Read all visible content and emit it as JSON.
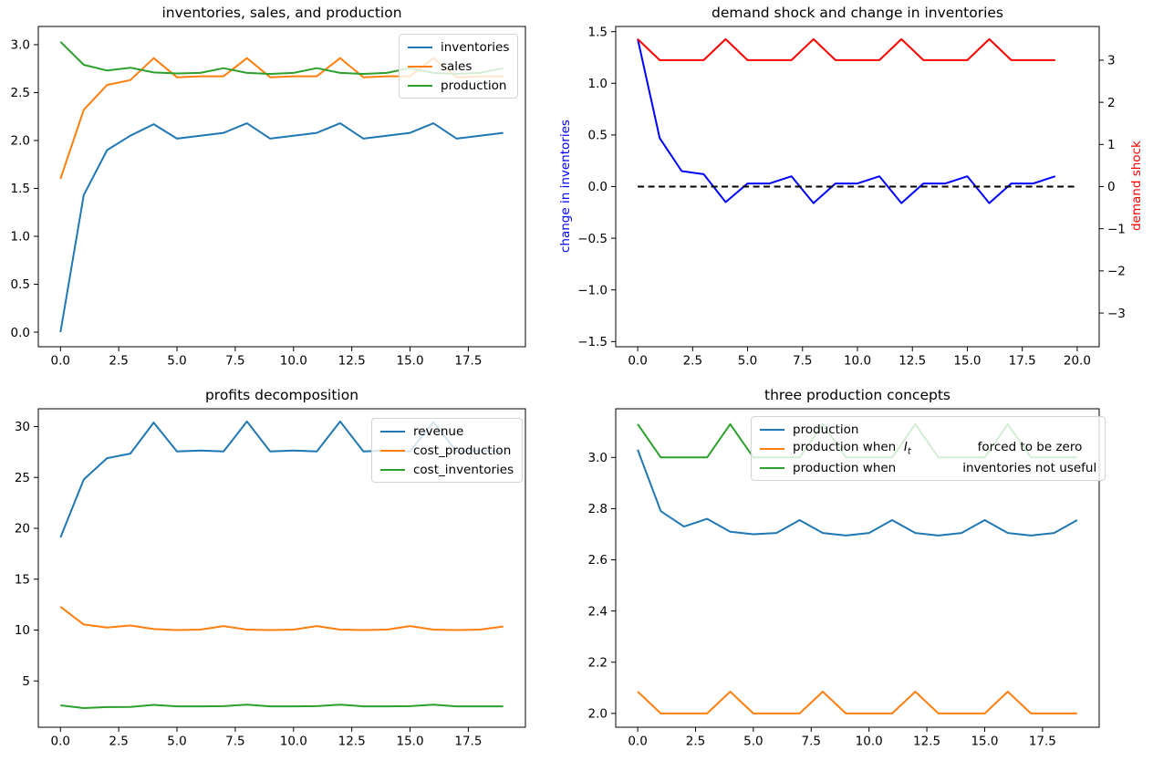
{
  "figure": {
    "background": "#ffffff"
  },
  "chart_data": [
    {
      "type": "line",
      "title": "inventories, sales, and production",
      "x": [
        0,
        1,
        2,
        3,
        4,
        5,
        6,
        7,
        8,
        9,
        10,
        11,
        12,
        13,
        14,
        15,
        16,
        17,
        18,
        19
      ],
      "xlim": [
        -0.95,
        19.95
      ],
      "ylim": [
        -0.152,
        3.19
      ],
      "grid": false,
      "legend_position": "upper right",
      "xticks": {
        "values": [
          0,
          2.5,
          5,
          7.5,
          10,
          12.5,
          15,
          17.5
        ],
        "labels": [
          "0.0",
          "2.5",
          "5.0",
          "7.5",
          "10.0",
          "12.5",
          "15.0",
          "17.5"
        ]
      },
      "yticks": {
        "values": [
          0,
          0.5,
          1,
          1.5,
          2,
          2.5,
          3
        ],
        "labels": [
          "0.0",
          "0.5",
          "1.0",
          "1.5",
          "2.0",
          "2.5",
          "3.0"
        ]
      },
      "series": [
        {
          "name": "inventories",
          "legend_label": "inventories",
          "color": "#1f77b4",
          "values": [
            0.0,
            1.43,
            1.9,
            2.05,
            2.17,
            2.02,
            2.05,
            2.08,
            2.18,
            2.02,
            2.05,
            2.08,
            2.18,
            2.02,
            2.05,
            2.08,
            2.18,
            2.02,
            2.05,
            2.08
          ]
        },
        {
          "name": "sales",
          "legend_label": "sales",
          "color": "#ff7f0e",
          "values": [
            1.6,
            2.32,
            2.58,
            2.63,
            2.86,
            2.66,
            2.67,
            2.67,
            2.86,
            2.66,
            2.67,
            2.67,
            2.86,
            2.66,
            2.67,
            2.67,
            2.86,
            2.66,
            2.67,
            2.67
          ]
        },
        {
          "name": "production",
          "legend_label": "production",
          "color": "#2ca02c",
          "values": [
            3.03,
            2.79,
            2.73,
            2.76,
            2.71,
            2.7,
            2.705,
            2.755,
            2.705,
            2.695,
            2.705,
            2.755,
            2.705,
            2.695,
            2.705,
            2.755,
            2.705,
            2.695,
            2.705,
            2.755
          ]
        }
      ]
    },
    {
      "type": "line",
      "title": "demand shock and change in inventories",
      "x": [
        0,
        1,
        2,
        3,
        4,
        5,
        6,
        7,
        8,
        9,
        10,
        11,
        12,
        13,
        14,
        15,
        16,
        17,
        18,
        19
      ],
      "xlim": [
        -1.0,
        21.0
      ],
      "ylim": [
        -1.55,
        1.55
      ],
      "ylim_right": [
        -3.8,
        3.8
      ],
      "grid": false,
      "legend_position": null,
      "ylabel_left": {
        "text": "change in inventories",
        "color": "#0000ff"
      },
      "ylabel_right": {
        "text": "demand shock",
        "color": "#ff0000"
      },
      "xticks": {
        "values": [
          0,
          2.5,
          5,
          7.5,
          10,
          12.5,
          15,
          17.5,
          20
        ],
        "labels": [
          "0.0",
          "2.5",
          "5.0",
          "7.5",
          "10.0",
          "12.5",
          "15.0",
          "17.5",
          "20.0"
        ]
      },
      "yticks": {
        "values": [
          -1.5,
          -1,
          -0.5,
          0,
          0.5,
          1,
          1.5
        ],
        "labels": [
          "−1.5",
          "−1.0",
          "−0.5",
          "0.0",
          "0.5",
          "1.0",
          "1.5"
        ]
      },
      "yticks_right": {
        "values": [
          -3,
          -2,
          -1,
          0,
          1,
          2,
          3
        ],
        "labels": [
          "−3",
          "−2",
          "−1",
          "0",
          "1",
          "2",
          "3"
        ]
      },
      "series": [
        {
          "name": "change in inventories",
          "legend_label": null,
          "color": "#0000ff",
          "axis": "left",
          "values": [
            1.43,
            0.47,
            0.15,
            0.12,
            -0.15,
            0.03,
            0.03,
            0.1,
            -0.16,
            0.03,
            0.03,
            0.1,
            -0.16,
            0.03,
            0.03,
            0.1,
            -0.16,
            0.03,
            0.03,
            0.1
          ]
        },
        {
          "name": "demand shock",
          "legend_label": null,
          "color": "#ff0000",
          "axis": "right",
          "values": [
            3.5,
            3,
            3,
            3,
            3.5,
            3,
            3,
            3,
            3.5,
            3,
            3,
            3,
            3.5,
            3,
            3,
            3,
            3.5,
            3,
            3,
            3
          ]
        },
        {
          "name": "zero line",
          "legend_label": null,
          "color": "#000000",
          "axis": "left",
          "dash": true,
          "x": [
            0,
            20
          ],
          "values": [
            0,
            0
          ]
        }
      ]
    },
    {
      "type": "line",
      "title": "profits decomposition",
      "x": [
        0,
        1,
        2,
        3,
        4,
        5,
        6,
        7,
        8,
        9,
        10,
        11,
        12,
        13,
        14,
        15,
        16,
        17,
        18,
        19
      ],
      "xlim": [
        -0.95,
        19.95
      ],
      "ylim": [
        0.45,
        31.75
      ],
      "grid": false,
      "legend_position": "upper right",
      "xticks": {
        "values": [
          0,
          2.5,
          5,
          7.5,
          10,
          12.5,
          15,
          17.5
        ],
        "labels": [
          "0.0",
          "2.5",
          "5.0",
          "7.5",
          "10.0",
          "12.5",
          "15.0",
          "17.5"
        ]
      },
      "yticks": {
        "values": [
          5,
          10,
          15,
          20,
          25,
          30
        ],
        "labels": [
          "5",
          "10",
          "15",
          "20",
          "25",
          "30"
        ]
      },
      "series": [
        {
          "name": "revenue",
          "legend_label": "revenue",
          "color": "#1f77b4",
          "values": [
            19.1,
            24.8,
            26.9,
            27.35,
            30.4,
            27.55,
            27.65,
            27.55,
            30.5,
            27.55,
            27.65,
            27.55,
            30.5,
            27.55,
            27.65,
            27.55,
            30.45,
            27.55,
            27.65,
            27.55
          ]
        },
        {
          "name": "cost_production",
          "legend_label": "cost_production",
          "color": "#ff7f0e",
          "values": [
            12.3,
            10.55,
            10.25,
            10.45,
            10.1,
            10.0,
            10.05,
            10.4,
            10.05,
            10.0,
            10.05,
            10.4,
            10.05,
            10.0,
            10.05,
            10.4,
            10.05,
            10.0,
            10.05,
            10.35
          ]
        },
        {
          "name": "cost_inventories",
          "legend_label": "cost_inventories",
          "color": "#2ca02c",
          "values": [
            2.6,
            2.33,
            2.43,
            2.45,
            2.65,
            2.5,
            2.5,
            2.52,
            2.67,
            2.5,
            2.5,
            2.52,
            2.67,
            2.5,
            2.5,
            2.52,
            2.67,
            2.5,
            2.5,
            2.5
          ]
        }
      ]
    },
    {
      "type": "line",
      "title": "three production concepts",
      "x": [
        0,
        1,
        2,
        3,
        4,
        5,
        6,
        7,
        8,
        9,
        10,
        11,
        12,
        13,
        14,
        15,
        16,
        17,
        18,
        19
      ],
      "xlim": [
        -0.95,
        19.95
      ],
      "ylim": [
        1.946,
        3.19
      ],
      "grid": false,
      "legend_position": "upper center",
      "xticks": {
        "values": [
          0,
          2.5,
          5,
          7.5,
          10,
          12.5,
          15,
          17.5
        ],
        "labels": [
          "0.0",
          "2.5",
          "5.0",
          "7.5",
          "10.0",
          "12.5",
          "15.0",
          "17.5"
        ]
      },
      "yticks": {
        "values": [
          2.0,
          2.2,
          2.4,
          2.6,
          2.8,
          3.0
        ],
        "labels": [
          "2.0",
          "2.2",
          "2.4",
          "2.6",
          "2.8",
          "3.0"
        ]
      },
      "series": [
        {
          "name": "production",
          "legend_label": "production",
          "color": "#1f77b4",
          "values": [
            3.03,
            2.79,
            2.73,
            2.76,
            2.71,
            2.7,
            2.705,
            2.755,
            2.705,
            2.695,
            2.705,
            2.755,
            2.705,
            2.695,
            2.705,
            2.755,
            2.705,
            2.695,
            2.705,
            2.755
          ]
        },
        {
          "name": "production when I_t forced to be zero",
          "legend_label": "production when  $I_t$                 forced to be zero",
          "color": "#ff7f0e",
          "values": [
            2.085,
            2.0,
            2.0,
            2.0,
            2.085,
            2.0,
            2.0,
            2.0,
            2.085,
            2.0,
            2.0,
            2.0,
            2.085,
            2.0,
            2.0,
            2.0,
            2.085,
            2.0,
            2.0,
            2.0
          ]
        },
        {
          "name": "production when inventories not useful",
          "legend_label": "production when                 inventories not useful",
          "color": "#2ca02c",
          "values": [
            3.13,
            3.0,
            3.0,
            3.0,
            3.13,
            3.0,
            3.0,
            3.0,
            3.13,
            3.0,
            3.0,
            3.0,
            3.13,
            3.0,
            3.0,
            3.0,
            3.13,
            3.0,
            3.0,
            3.0
          ]
        }
      ]
    }
  ]
}
